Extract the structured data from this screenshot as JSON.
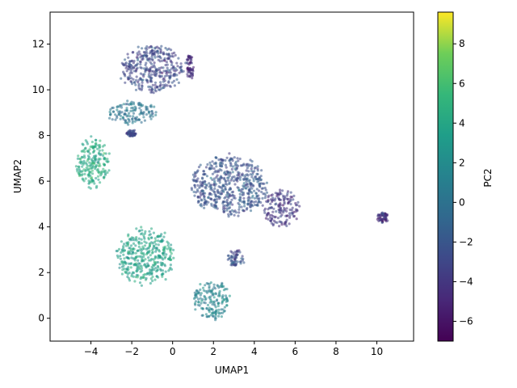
{
  "chart_data": {
    "type": "scatter",
    "title": "",
    "xlabel": "UMAP1",
    "ylabel": "UMAP2",
    "xlim": [
      -6.0,
      11.8
    ],
    "ylim": [
      -1.0,
      13.4
    ],
    "xticks": [
      -4,
      -2,
      0,
      2,
      4,
      6,
      8,
      10
    ],
    "yticks": [
      0,
      2,
      4,
      6,
      8,
      10,
      12
    ],
    "xtick_labels": [
      "−4",
      "−2",
      "0",
      "2",
      "4",
      "6",
      "8",
      "10"
    ],
    "ytick_labels": [
      "0",
      "2",
      "4",
      "6",
      "8",
      "10",
      "12"
    ],
    "grid": false,
    "colormap": "viridis",
    "colorbar": {
      "label": "PC2",
      "range": [
        -7.0,
        9.6
      ],
      "ticks": [
        -6,
        -4,
        -2,
        0,
        2,
        4,
        6,
        8
      ],
      "tick_labels": [
        "−6",
        "−4",
        "−2",
        "0",
        "2",
        "4",
        "6",
        "8"
      ]
    },
    "clusters": [
      {
        "center": [
          -1.0,
          10.9
        ],
        "spread": [
          1.55,
          1.05
        ],
        "pc2_mean": -2.9
      },
      {
        "center": [
          0.85,
          11.0
        ],
        "spread": [
          0.18,
          0.55
        ],
        "pc2_mean": -4.6
      },
      {
        "center": [
          -3.9,
          6.8
        ],
        "spread": [
          0.85,
          1.1
        ],
        "pc2_mean": 4.3
      },
      {
        "center": [
          2.8,
          5.8
        ],
        "spread": [
          1.9,
          1.3
        ],
        "pc2_mean": -2.1
      },
      {
        "center": [
          5.3,
          4.8
        ],
        "spread": [
          0.9,
          0.8
        ],
        "pc2_mean": -3.9
      },
      {
        "center": [
          10.3,
          4.4
        ],
        "spread": [
          0.28,
          0.22
        ],
        "pc2_mean": -4.3
      },
      {
        "center": [
          -1.3,
          2.7
        ],
        "spread": [
          1.4,
          1.2
        ],
        "pc2_mean": 3.7
      },
      {
        "center": [
          1.9,
          0.8
        ],
        "spread": [
          0.9,
          0.85
        ],
        "pc2_mean": 1.4
      },
      {
        "center": [
          3.1,
          2.6
        ],
        "spread": [
          0.4,
          0.4
        ],
        "pc2_mean": -2.5
      },
      {
        "center": [
          -2.0,
          8.1
        ],
        "spread": [
          0.25,
          0.15
        ],
        "pc2_mean": -3.0
      },
      {
        "center": [
          -2.0,
          9.0
        ],
        "spread": [
          1.2,
          0.5
        ],
        "pc2_mean": 0.2
      }
    ]
  }
}
